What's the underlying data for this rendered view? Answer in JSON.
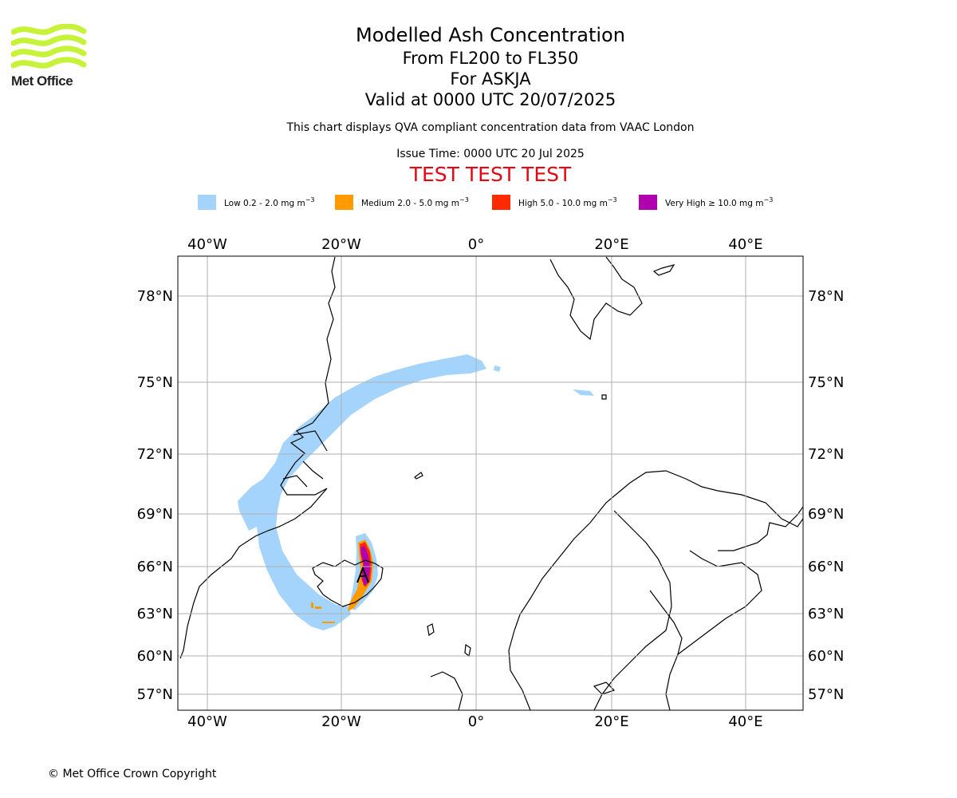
{
  "logo": {
    "text": "Met Office",
    "color": "#c7f23a"
  },
  "header": {
    "title": "Modelled Ash Concentration",
    "levels": "From FL200 to FL350",
    "volcano": "For ASKJA",
    "valid": "Valid at 0000 UTC 20/07/2025",
    "subtitle": "This chart displays QVA compliant concentration data from VAAC London",
    "issue": "Issue Time: 0000 UTC 20 Jul 2025",
    "test_banner": "TEST TEST TEST",
    "test_color": "#e30613"
  },
  "legend": [
    {
      "label": "Low 0.2 - 2.0 mg m",
      "unit_sup": "−3",
      "color": "#a4d4fc"
    },
    {
      "label": "Medium 2.0 - 5.0 mg m",
      "unit_sup": "−3",
      "color": "#ff9a00"
    },
    {
      "label": "High 5.0 - 10.0 mg m",
      "unit_sup": "−3",
      "color": "#ff2a00"
    },
    {
      "label": "Very High  ≥  10.0 mg m",
      "unit_sup": "−3",
      "color": "#b000b0"
    }
  ],
  "map": {
    "lon_ticks": [
      "40°W",
      "20°W",
      "0°",
      "20°E",
      "40°E"
    ],
    "lat_ticks": [
      "78°N",
      "75°N",
      "72°N",
      "69°N",
      "66°N",
      "63°N",
      "60°N",
      "57°N"
    ],
    "grid": true,
    "grid_color": "#b0b0b0"
  },
  "footer": {
    "copyright": "© Met Office Crown Copyright"
  }
}
